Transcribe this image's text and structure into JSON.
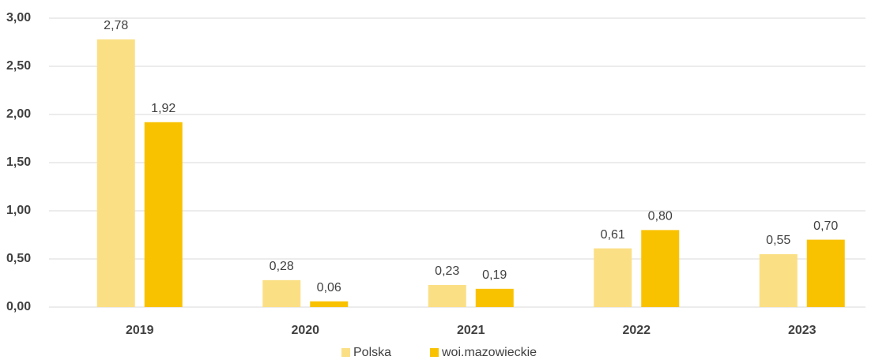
{
  "chart_data": {
    "type": "bar",
    "categories": [
      "2019",
      "2020",
      "2021",
      "2022",
      "2023"
    ],
    "series": [
      {
        "name": "Polska",
        "color": "#fbdf85",
        "values": [
          2.78,
          0.28,
          0.23,
          0.61,
          0.55
        ],
        "value_labels": [
          "2,78",
          "0,28",
          "0,23",
          "0,61",
          "0,55"
        ]
      },
      {
        "name": "woi.mazowieckie",
        "color": "#f9c200",
        "values": [
          1.92,
          0.06,
          0.19,
          0.8,
          0.7
        ],
        "value_labels": [
          "1,92",
          "0,06",
          "0,19",
          "0,80",
          "0,70"
        ]
      }
    ],
    "ylim": [
      0,
      3
    ],
    "yticks": [
      {
        "value": 0,
        "label": "0,00"
      },
      {
        "value": 0.5,
        "label": "0,50"
      },
      {
        "value": 1,
        "label": "1,00"
      },
      {
        "value": 1.5,
        "label": "1,50"
      },
      {
        "value": 2,
        "label": "2,00"
      },
      {
        "value": 2.5,
        "label": "2,50"
      },
      {
        "value": 3,
        "label": "3,00"
      }
    ],
    "grid": true,
    "legend": "bottom"
  }
}
